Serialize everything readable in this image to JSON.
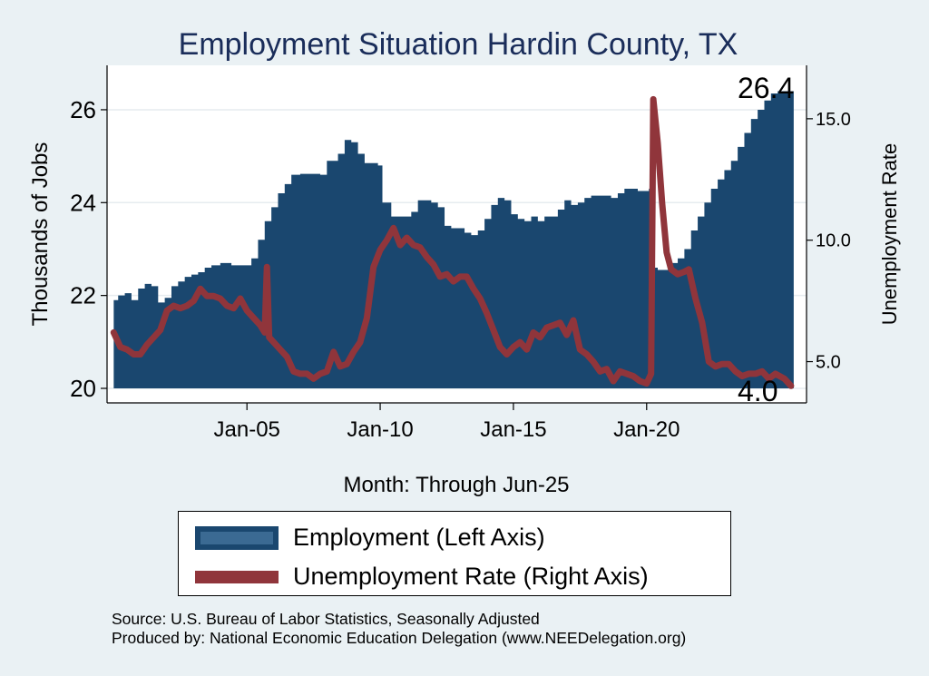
{
  "chart_data": {
    "type": "area+line",
    "title": "Employment Situation Hardin  County, TX",
    "xlabel": "Month: Through Jun-25",
    "ylabel_left": "Thousands of Jobs",
    "ylabel_right": "Unemployment Rate",
    "x_ticks": [
      "Jan-05",
      "Jan-10",
      "Jan-15",
      "Jan-20"
    ],
    "y_left_ticks": [
      "20",
      "22",
      "24",
      "26"
    ],
    "y_right_ticks": [
      "5.0",
      "10.0",
      "15.0"
    ],
    "y_left_range": [
      20,
      26.8
    ],
    "y_right_range": [
      3.9,
      16.9
    ],
    "last_employment_label": "26.4",
    "last_unemployment_label": "4.0",
    "employment_series": {
      "name": "Employment (Left Axis)",
      "color": "#1a476f",
      "points": [
        [
          "2000-01",
          21.9
        ],
        [
          "2000-03",
          22.0
        ],
        [
          "2000-06",
          22.05
        ],
        [
          "2000-09",
          21.9
        ],
        [
          "2000-12",
          22.15
        ],
        [
          "2001-03",
          22.25
        ],
        [
          "2001-06",
          22.2
        ],
        [
          "2001-09",
          21.85
        ],
        [
          "2001-12",
          21.95
        ],
        [
          "2002-03",
          22.2
        ],
        [
          "2002-06",
          22.3
        ],
        [
          "2002-09",
          22.4
        ],
        [
          "2002-12",
          22.45
        ],
        [
          "2003-03",
          22.5
        ],
        [
          "2003-06",
          22.6
        ],
        [
          "2003-09",
          22.65
        ],
        [
          "2004-01",
          22.7
        ],
        [
          "2004-06",
          22.65
        ],
        [
          "2004-12",
          22.65
        ],
        [
          "2005-03",
          22.8
        ],
        [
          "2005-06",
          23.2
        ],
        [
          "2005-09",
          23.6
        ],
        [
          "2005-12",
          23.9
        ],
        [
          "2006-03",
          24.2
        ],
        [
          "2006-06",
          24.4
        ],
        [
          "2006-09",
          24.6
        ],
        [
          "2007-01",
          24.62
        ],
        [
          "2007-06",
          24.62
        ],
        [
          "2007-10",
          24.6
        ],
        [
          "2008-01",
          24.9
        ],
        [
          "2008-06",
          25.05
        ],
        [
          "2008-09",
          25.35
        ],
        [
          "2008-12",
          25.3
        ],
        [
          "2009-03",
          25.05
        ],
        [
          "2009-06",
          24.85
        ],
        [
          "2009-09",
          24.85
        ],
        [
          "2009-12",
          24.8
        ],
        [
          "2010-02",
          24.0
        ],
        [
          "2010-06",
          23.7
        ],
        [
          "2010-12",
          23.7
        ],
        [
          "2011-03",
          23.8
        ],
        [
          "2011-06",
          24.05
        ],
        [
          "2011-12",
          24.0
        ],
        [
          "2012-03",
          23.9
        ],
        [
          "2012-06",
          23.5
        ],
        [
          "2012-09",
          23.45
        ],
        [
          "2012-12",
          23.45
        ],
        [
          "2013-03",
          23.35
        ],
        [
          "2013-06",
          23.3
        ],
        [
          "2013-09",
          23.4
        ],
        [
          "2013-12",
          23.65
        ],
        [
          "2014-03",
          23.95
        ],
        [
          "2014-06",
          24.1
        ],
        [
          "2014-09",
          24.05
        ],
        [
          "2014-12",
          23.75
        ],
        [
          "2015-03",
          23.65
        ],
        [
          "2015-06",
          23.6
        ],
        [
          "2015-09",
          23.7
        ],
        [
          "2015-12",
          23.6
        ],
        [
          "2016-03",
          23.7
        ],
        [
          "2016-06",
          23.7
        ],
        [
          "2016-09",
          23.85
        ],
        [
          "2016-12",
          24.05
        ],
        [
          "2017-03",
          23.95
        ],
        [
          "2017-06",
          24.0
        ],
        [
          "2017-09",
          24.1
        ],
        [
          "2017-12",
          24.15
        ],
        [
          "2018-03",
          24.15
        ],
        [
          "2018-06",
          24.15
        ],
        [
          "2018-09",
          24.1
        ],
        [
          "2018-12",
          24.2
        ],
        [
          "2019-03",
          24.3
        ],
        [
          "2019-06",
          24.3
        ],
        [
          "2019-09",
          24.25
        ],
        [
          "2019-12",
          24.25
        ],
        [
          "2020-02",
          24.3
        ],
        [
          "2020-04",
          22.6
        ],
        [
          "2020-06",
          22.55
        ],
        [
          "2020-09",
          22.55
        ],
        [
          "2020-12",
          22.7
        ],
        [
          "2021-03",
          22.8
        ],
        [
          "2021-06",
          23.0
        ],
        [
          "2021-09",
          23.4
        ],
        [
          "2021-12",
          23.7
        ],
        [
          "2022-03",
          24.0
        ],
        [
          "2022-06",
          24.3
        ],
        [
          "2022-09",
          24.5
        ],
        [
          "2022-12",
          24.7
        ],
        [
          "2023-03",
          24.9
        ],
        [
          "2023-06",
          25.2
        ],
        [
          "2023-09",
          25.5
        ],
        [
          "2023-12",
          25.8
        ],
        [
          "2024-03",
          26.0
        ],
        [
          "2024-06",
          26.2
        ],
        [
          "2024-09",
          26.35
        ],
        [
          "2024-12",
          26.4
        ],
        [
          "2025-06",
          26.4
        ]
      ]
    },
    "unemployment_series": {
      "name": "Unemployment Rate (Right Axis)",
      "color": "#90353b",
      "points": [
        [
          "2000-01",
          6.2
        ],
        [
          "2000-04",
          5.6
        ],
        [
          "2000-07",
          5.5
        ],
        [
          "2000-10",
          5.3
        ],
        [
          "2001-01",
          5.3
        ],
        [
          "2001-04",
          5.7
        ],
        [
          "2001-07",
          6.0
        ],
        [
          "2001-10",
          6.3
        ],
        [
          "2002-01",
          7.1
        ],
        [
          "2002-04",
          7.3
        ],
        [
          "2002-07",
          7.2
        ],
        [
          "2002-10",
          7.3
        ],
        [
          "2003-01",
          7.5
        ],
        [
          "2003-04",
          8.0
        ],
        [
          "2003-07",
          7.7
        ],
        [
          "2003-10",
          7.7
        ],
        [
          "2004-01",
          7.6
        ],
        [
          "2004-04",
          7.3
        ],
        [
          "2004-07",
          7.2
        ],
        [
          "2004-10",
          7.6
        ],
        [
          "2005-01",
          7.1
        ],
        [
          "2005-04",
          6.8
        ],
        [
          "2005-07",
          6.5
        ],
        [
          "2005-09",
          6.2
        ],
        [
          "2005-10",
          8.9
        ],
        [
          "2005-11",
          6.0
        ],
        [
          "2006-01",
          5.8
        ],
        [
          "2006-04",
          5.5
        ],
        [
          "2006-07",
          5.2
        ],
        [
          "2006-10",
          4.6
        ],
        [
          "2007-01",
          4.5
        ],
        [
          "2007-04",
          4.5
        ],
        [
          "2007-07",
          4.3
        ],
        [
          "2007-10",
          4.5
        ],
        [
          "2008-01",
          4.6
        ],
        [
          "2008-04",
          5.4
        ],
        [
          "2008-07",
          4.8
        ],
        [
          "2008-10",
          4.9
        ],
        [
          "2009-01",
          5.4
        ],
        [
          "2009-04",
          5.8
        ],
        [
          "2009-07",
          6.8
        ],
        [
          "2009-10",
          8.9
        ],
        [
          "2010-01",
          9.6
        ],
        [
          "2010-04",
          10.0
        ],
        [
          "2010-07",
          10.5
        ],
        [
          "2010-10",
          9.8
        ],
        [
          "2011-01",
          10.1
        ],
        [
          "2011-04",
          9.8
        ],
        [
          "2011-07",
          9.7
        ],
        [
          "2011-10",
          9.3
        ],
        [
          "2012-01",
          9.0
        ],
        [
          "2012-04",
          8.5
        ],
        [
          "2012-07",
          8.6
        ],
        [
          "2012-10",
          8.3
        ],
        [
          "2013-01",
          8.5
        ],
        [
          "2013-04",
          8.5
        ],
        [
          "2013-07",
          8.0
        ],
        [
          "2013-10",
          7.6
        ],
        [
          "2014-01",
          7.0
        ],
        [
          "2014-04",
          6.3
        ],
        [
          "2014-07",
          5.6
        ],
        [
          "2014-10",
          5.3
        ],
        [
          "2015-01",
          5.6
        ],
        [
          "2015-04",
          5.8
        ],
        [
          "2015-07",
          5.5
        ],
        [
          "2015-10",
          6.2
        ],
        [
          "2016-01",
          6.0
        ],
        [
          "2016-04",
          6.4
        ],
        [
          "2016-07",
          6.5
        ],
        [
          "2016-10",
          6.6
        ],
        [
          "2017-01",
          6.1
        ],
        [
          "2017-04",
          6.7
        ],
        [
          "2017-07",
          5.5
        ],
        [
          "2017-10",
          5.3
        ],
        [
          "2018-01",
          5.0
        ],
        [
          "2018-04",
          4.6
        ],
        [
          "2018-07",
          4.7
        ],
        [
          "2018-10",
          4.2
        ],
        [
          "2019-01",
          4.6
        ],
        [
          "2019-04",
          4.5
        ],
        [
          "2019-07",
          4.4
        ],
        [
          "2019-10",
          4.2
        ],
        [
          "2020-01",
          4.1
        ],
        [
          "2020-03",
          4.5
        ],
        [
          "2020-04",
          15.8
        ],
        [
          "2020-06",
          14.0
        ],
        [
          "2020-08",
          11.5
        ],
        [
          "2020-10",
          9.5
        ],
        [
          "2020-12",
          8.8
        ],
        [
          "2021-03",
          8.6
        ],
        [
          "2021-06",
          8.7
        ],
        [
          "2021-08",
          8.8
        ],
        [
          "2021-11",
          7.6
        ],
        [
          "2022-02",
          6.6
        ],
        [
          "2022-05",
          5.0
        ],
        [
          "2022-08",
          4.8
        ],
        [
          "2022-11",
          4.9
        ],
        [
          "2023-02",
          4.9
        ],
        [
          "2023-05",
          4.6
        ],
        [
          "2023-08",
          4.4
        ],
        [
          "2023-11",
          4.5
        ],
        [
          "2024-02",
          4.5
        ],
        [
          "2024-05",
          4.6
        ],
        [
          "2024-08",
          4.3
        ],
        [
          "2024-11",
          4.5
        ],
        [
          "2025-03",
          4.3
        ],
        [
          "2025-06",
          4.0
        ]
      ]
    },
    "legend": {
      "position": "bottom",
      "entries": [
        "Employment (Left Axis)",
        "Unemployment Rate (Right Axis)"
      ]
    },
    "grid": true
  },
  "source_lines": [
    "Source: U.S. Bureau of Labor Statistics, Seasonally Adjusted",
    "Produced by: National Economic Education Delegation (www.NEEDelegation.org)"
  ],
  "colors": {
    "background": "#eaf1f4",
    "plot_background": "#ffffff",
    "employment": "#1a476f",
    "unemployment": "#90353b",
    "title": "#1a2d5a"
  }
}
